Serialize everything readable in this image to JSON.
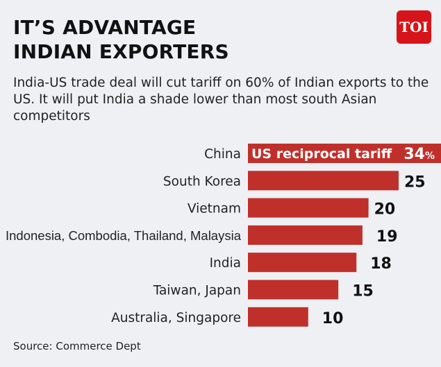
{
  "header": {
    "title_line1": "IT’S ADVANTAGE",
    "title_line2": "INDIAN EXPORTERS",
    "subtitle": "India-US trade deal will cut tariff on 60% of Indian exports to the US. It will put India a shade lower than most south Asian competitors",
    "logo": "TOI"
  },
  "footer": {
    "source": "Source: Commerce Dept"
  },
  "colors": {
    "bar": "#c0302b",
    "background": "#eef0f4",
    "logo": "#d7141a"
  },
  "chart_data": {
    "type": "bar",
    "orientation": "horizontal",
    "title": "",
    "bar_label": "US reciprocal tariff",
    "unit": "%",
    "categories": [
      "China",
      "South Korea",
      "Vietnam",
      "Indonesia, Combodia, Thailand, Malaysia",
      "India",
      "Taiwan, Japan",
      "Australia, Singapore"
    ],
    "values": [
      34,
      25,
      20,
      19,
      18,
      15,
      10
    ],
    "value_labels": [
      "34",
      "25",
      "20",
      "19",
      "18",
      "15",
      "10"
    ]
  }
}
